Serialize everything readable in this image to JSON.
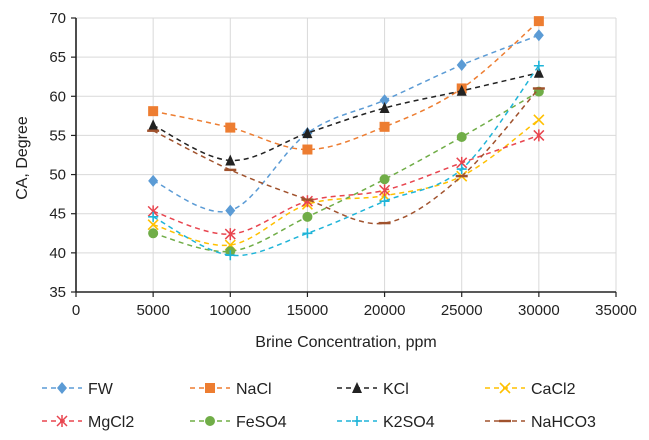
{
  "chart_data": {
    "type": "line",
    "title": "",
    "xlabel": "Brine Concentration, ppm",
    "ylabel": "CA, Degree",
    "xlim": [
      0,
      35000
    ],
    "ylim": [
      35,
      70
    ],
    "xticks": [
      0,
      5000,
      10000,
      15000,
      20000,
      25000,
      30000,
      35000
    ],
    "yticks": [
      35,
      40,
      45,
      50,
      55,
      60,
      65,
      70
    ],
    "xtick_labels": [
      "0",
      "5000",
      "10000",
      "15000",
      "20000",
      "25000",
      "30000",
      "35000"
    ],
    "ytick_labels": [
      "35",
      "40",
      "45",
      "50",
      "55",
      "60",
      "65",
      "70"
    ],
    "x": [
      5000,
      10000,
      15000,
      20000,
      25000,
      30000
    ],
    "grid": true,
    "legend_position": "bottom",
    "series": [
      {
        "name": "FW",
        "values": [
          49.2,
          45.4,
          55.3,
          59.5,
          64.0,
          67.8
        ],
        "color": "#5b9bd5",
        "marker": "diamond"
      },
      {
        "name": "NaCl",
        "values": [
          58.1,
          56.0,
          53.2,
          56.1,
          61.0,
          69.6
        ],
        "color": "#ed7d31",
        "marker": "square"
      },
      {
        "name": "KCl",
        "values": [
          56.3,
          51.8,
          55.3,
          58.5,
          60.7,
          63.0
        ],
        "color": "#222222",
        "marker": "triangle"
      },
      {
        "name": "CaCl2",
        "values": [
          43.6,
          41.0,
          46.2,
          47.3,
          49.8,
          57.0
        ],
        "color": "#ffc000",
        "marker": "x"
      },
      {
        "name": "MgCl2",
        "values": [
          45.3,
          42.4,
          46.6,
          48.0,
          51.5,
          55.0
        ],
        "color": "#e8454f",
        "marker": "star"
      },
      {
        "name": "FeSO4",
        "values": [
          42.5,
          40.2,
          44.6,
          49.4,
          54.8,
          60.6
        ],
        "color": "#70ad47",
        "marker": "circle"
      },
      {
        "name": "K2SO4",
        "values": [
          44.6,
          39.7,
          42.5,
          46.6,
          50.7,
          63.9
        ],
        "color": "#1fb4d8",
        "marker": "plus"
      },
      {
        "name": "NaHCO3",
        "values": [
          55.6,
          50.6,
          46.8,
          43.8,
          49.8,
          61.0
        ],
        "color": "#a0522d",
        "marker": "dash"
      }
    ]
  }
}
